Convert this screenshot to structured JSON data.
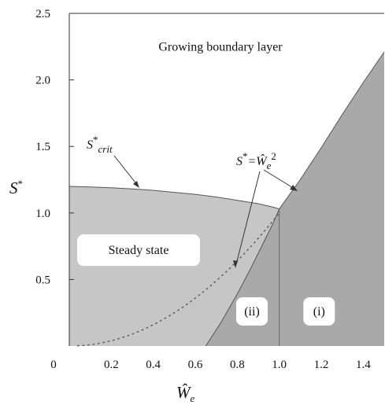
{
  "chart_data": {
    "type": "area",
    "xlim": [
      0,
      1.5
    ],
    "ylim": [
      0,
      2.5
    ],
    "x_ticks": [
      "0",
      "0.2",
      "0.4",
      "0.6",
      "0.8",
      "1.0",
      "1.2",
      "1.4"
    ],
    "x_tick_values": [
      0,
      0.2,
      0.4,
      0.6,
      0.8,
      1.0,
      1.2,
      1.4
    ],
    "y_ticks": [
      "0.5",
      "1.0",
      "1.5",
      "2.0",
      "2.5"
    ],
    "y_tick_values": [
      0.5,
      1.0,
      1.5,
      2.0,
      2.5
    ],
    "xlabel": "Ŵ",
    "xlabel_sub": "e",
    "ylabel": "S",
    "ylabel_sup": "*",
    "grid": false,
    "colors": {
      "white_region": "#ffffff",
      "light_region": "#c6c6c6",
      "dark_region": "#a9a9a9",
      "boundary": "#555555",
      "label_box": "#ffffff"
    },
    "series": [
      {
        "name": "S*crit",
        "x": [
          0,
          0.1,
          0.2,
          0.3,
          0.4,
          0.5,
          0.6,
          0.7,
          0.8,
          0.9,
          0.98,
          1.0
        ],
        "y": [
          1.2,
          1.195,
          1.19,
          1.18,
          1.17,
          1.155,
          1.14,
          1.12,
          1.095,
          1.07,
          1.04,
          1.03
        ]
      },
      {
        "name": "S* = Ŵe²",
        "style": "dotted",
        "x": [
          0.1,
          0.2,
          0.3,
          0.4,
          0.5,
          0.6,
          0.7,
          0.8,
          0.9,
          1.0
        ],
        "y": [
          0.01,
          0.04,
          0.09,
          0.16,
          0.25,
          0.36,
          0.49,
          0.64,
          0.81,
          1.0
        ]
      },
      {
        "name": "Region (i) boundary",
        "x": [
          1.0,
          1.1,
          1.2,
          1.3,
          1.4,
          1.5
        ],
        "y": [
          1.03,
          1.25,
          1.49,
          1.74,
          1.98,
          2.21
        ]
      },
      {
        "name": "Region (ii) boundary",
        "x": [
          0.65,
          0.72,
          0.8,
          0.86,
          0.92,
          0.97,
          1.0
        ],
        "y": [
          0.0,
          0.17,
          0.39,
          0.57,
          0.76,
          0.92,
          1.03
        ]
      }
    ],
    "region_labels": [
      {
        "text": "Growing boundary layer",
        "x": 0.72,
        "y": 2.22
      },
      {
        "text": "Steady state",
        "x": 0.33,
        "y": 0.72
      },
      {
        "text": "(ii)",
        "x": 0.87,
        "y": 0.26
      },
      {
        "text": "(i)",
        "x": 1.19,
        "y": 0.26
      }
    ],
    "annotations": [
      {
        "text": "S",
        "sup": "*",
        "sub": "crit"
      },
      {
        "text": "S",
        "sup": "*",
        "rhs": "=Ŵ",
        "rhs_sub": "e",
        "rhs_sup": "2"
      }
    ]
  }
}
